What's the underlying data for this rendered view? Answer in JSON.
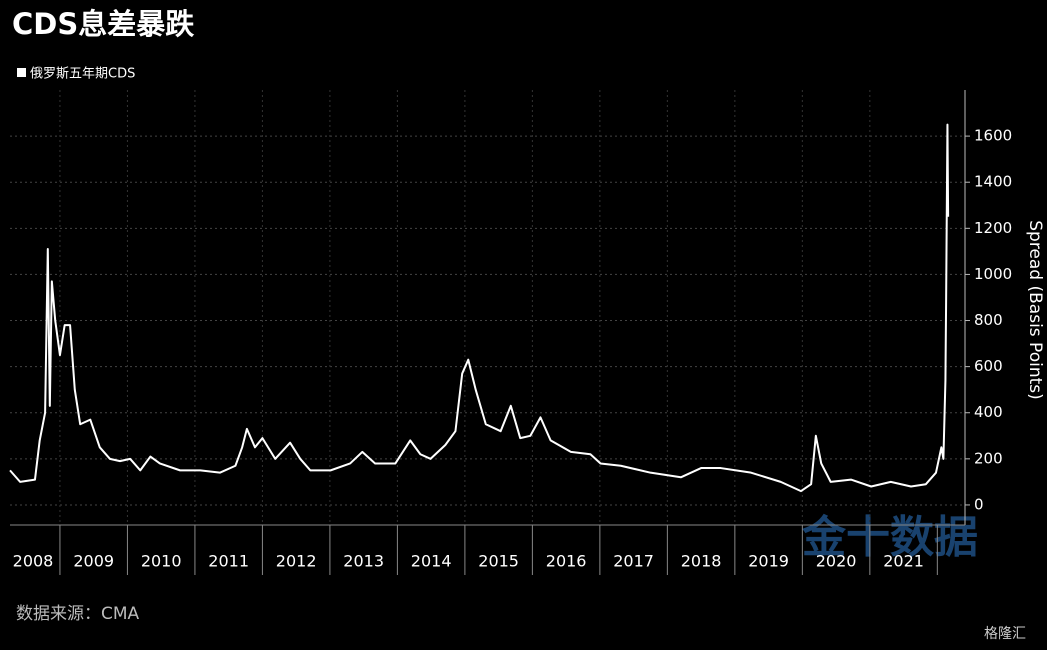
{
  "chart_data": {
    "type": "line",
    "title": "CDS息差暴跌",
    "y_label": "Spread (Basis Points)",
    "source": "数据来源：CMA",
    "watermark": "金十数据",
    "corner_mark": "格隆汇",
    "grid": true,
    "xlim": [
      2008.26,
      2022.41
    ],
    "ylim": [
      -87,
      1800
    ],
    "yticks": [
      0,
      200,
      400,
      600,
      800,
      1000,
      1200,
      1400,
      1600
    ],
    "xticks": [
      {
        "value": 2008.5,
        "label": "2008"
      },
      {
        "value": 2009.5,
        "label": "2009"
      },
      {
        "value": 2010.5,
        "label": "2010"
      },
      {
        "value": 2011.5,
        "label": "2011"
      },
      {
        "value": 2012.5,
        "label": "2012"
      },
      {
        "value": 2013.5,
        "label": "2013"
      },
      {
        "value": 2014.5,
        "label": "2014"
      },
      {
        "value": 2015.5,
        "label": "2015"
      },
      {
        "value": 2016.5,
        "label": "2016"
      },
      {
        "value": 2017.5,
        "label": "2017"
      },
      {
        "value": 2018.5,
        "label": "2018"
      },
      {
        "value": 2019.5,
        "label": "2019"
      },
      {
        "value": 2020.5,
        "label": "2020"
      },
      {
        "value": 2021.5,
        "label": "2021"
      }
    ],
    "x": [
      2008.26,
      2008.41,
      2008.63,
      2008.7,
      2008.78,
      2008.82,
      2008.85,
      2008.88,
      2008.93,
      2009.0,
      2009.07,
      2009.15,
      2009.22,
      2009.3,
      2009.45,
      2009.59,
      2009.74,
      2009.89,
      2010.04,
      2010.19,
      2010.34,
      2010.48,
      2010.78,
      2011.08,
      2011.37,
      2011.6,
      2011.7,
      2011.77,
      2011.89,
      2012.0,
      2012.19,
      2012.41,
      2012.56,
      2012.71,
      2013.01,
      2013.3,
      2013.48,
      2013.67,
      2013.97,
      2014.19,
      2014.34,
      2014.49,
      2014.71,
      2014.86,
      2014.96,
      2015.05,
      2015.16,
      2015.31,
      2015.53,
      2015.68,
      2015.82,
      2015.97,
      2016.12,
      2016.27,
      2016.57,
      2016.86,
      2017.01,
      2017.31,
      2017.75,
      2018.2,
      2018.5,
      2018.79,
      2019.24,
      2019.68,
      2019.98,
      2020.13,
      2020.2,
      2020.28,
      2020.42,
      2020.72,
      2021.02,
      2021.31,
      2021.61,
      2021.83,
      2021.98,
      2022.06,
      2022.09,
      2022.12,
      2022.13,
      2022.15,
      2022.16
    ],
    "series": [
      {
        "name": "俄罗斯五年期CDS",
        "color": "#ffffff",
        "values": [
          150,
          100,
          110,
          280,
          400,
          1110,
          430,
          970,
          800,
          650,
          780,
          780,
          500,
          350,
          370,
          250,
          200,
          190,
          200,
          150,
          210,
          180,
          150,
          150,
          140,
          170,
          250,
          330,
          250,
          290,
          200,
          270,
          200,
          150,
          150,
          180,
          230,
          180,
          180,
          280,
          220,
          200,
          260,
          320,
          570,
          630,
          500,
          350,
          320,
          430,
          290,
          300,
          380,
          280,
          230,
          220,
          180,
          170,
          140,
          120,
          160,
          160,
          140,
          100,
          60,
          90,
          300,
          180,
          100,
          110,
          80,
          100,
          80,
          90,
          140,
          250,
          200,
          540,
          880,
          1650,
          1250
        ]
      }
    ]
  }
}
